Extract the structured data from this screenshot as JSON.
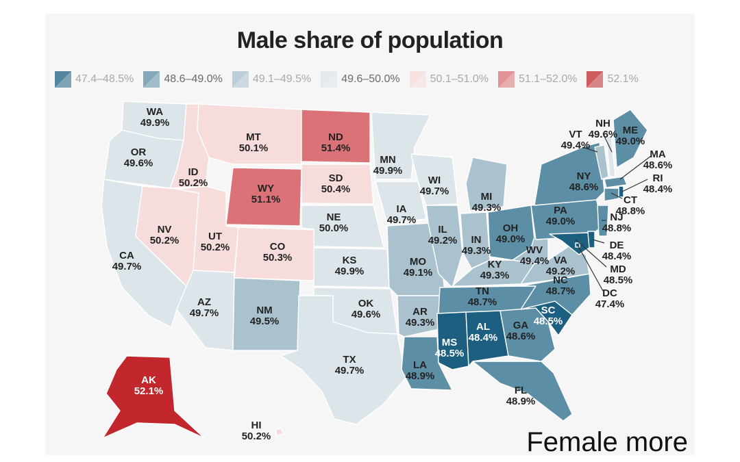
{
  "chart_data": {
    "type": "choropleth",
    "title": "Male share of population",
    "legend": [
      {
        "label": "47.4–48.5%",
        "min": 47.4,
        "max": 48.5,
        "color": "#1d5f80"
      },
      {
        "label": "48.6–49.0%",
        "min": 48.6,
        "max": 49.0,
        "color": "#5c8ea6"
      },
      {
        "label": "49.1–49.5%",
        "min": 49.1,
        "max": 49.5,
        "color": "#a9c2ce"
      },
      {
        "label": "49.6–50.0%",
        "min": 49.6,
        "max": 50.0,
        "color": "#dbe5ea"
      },
      {
        "label": "50.1–51.0%",
        "min": 50.1,
        "max": 51.0,
        "color": "#f7dcdc"
      },
      {
        "label": "51.1–52.0%",
        "min": 51.1,
        "max": 52.0,
        "color": "#da7277"
      },
      {
        "label": "52.1%",
        "min": 52.1,
        "max": 52.1,
        "color": "#c1272d"
      }
    ],
    "legend_placement": "top",
    "states": [
      {
        "code": "WA",
        "value": 49.9,
        "label": "49.9%"
      },
      {
        "code": "OR",
        "value": 49.6,
        "label": "49.6%"
      },
      {
        "code": "CA",
        "value": 49.7,
        "label": "49.7%"
      },
      {
        "code": "ID",
        "value": 50.2,
        "label": "50.2%"
      },
      {
        "code": "NV",
        "value": 50.2,
        "label": "50.2%"
      },
      {
        "code": "MT",
        "value": 50.1,
        "label": "50.1%"
      },
      {
        "code": "WY",
        "value": 51.1,
        "label": "51.1%"
      },
      {
        "code": "UT",
        "value": 50.2,
        "label": "50.2%"
      },
      {
        "code": "CO",
        "value": 50.3,
        "label": "50.3%"
      },
      {
        "code": "AZ",
        "value": 49.7,
        "label": "49.7%"
      },
      {
        "code": "NM",
        "value": 49.5,
        "label": "49.5%"
      },
      {
        "code": "ND",
        "value": 51.4,
        "label": "51.4%"
      },
      {
        "code": "SD",
        "value": 50.4,
        "label": "50.4%"
      },
      {
        "code": "NE",
        "value": 50.0,
        "label": "50.0%"
      },
      {
        "code": "KS",
        "value": 49.9,
        "label": "49.9%"
      },
      {
        "code": "OK",
        "value": 49.6,
        "label": "49.6%"
      },
      {
        "code": "TX",
        "value": 49.7,
        "label": "49.7%"
      },
      {
        "code": "MN",
        "value": 49.9,
        "label": "49.9%"
      },
      {
        "code": "IA",
        "value": 49.7,
        "label": "49.7%"
      },
      {
        "code": "MO",
        "value": 49.1,
        "label": "49.1%"
      },
      {
        "code": "AR",
        "value": 49.3,
        "label": "49.3%"
      },
      {
        "code": "LA",
        "value": 48.9,
        "label": "48.9%"
      },
      {
        "code": "WI",
        "value": 49.7,
        "label": "49.7%"
      },
      {
        "code": "IL",
        "value": 49.2,
        "label": "49.2%"
      },
      {
        "code": "MI",
        "value": 49.3,
        "label": "49.3%"
      },
      {
        "code": "IN",
        "value": 49.3,
        "label": "49.3%"
      },
      {
        "code": "OH",
        "value": 49.0,
        "label": "49.0%"
      },
      {
        "code": "KY",
        "value": 49.3,
        "label": "49.3%"
      },
      {
        "code": "TN",
        "value": 48.7,
        "label": "48.7%"
      },
      {
        "code": "MS",
        "value": 48.5,
        "label": "48.5%"
      },
      {
        "code": "AL",
        "value": 48.4,
        "label": "48.4%"
      },
      {
        "code": "GA",
        "value": 48.6,
        "label": "48.6%"
      },
      {
        "code": "FL",
        "value": 48.9,
        "label": "48.9%"
      },
      {
        "code": "SC",
        "value": 48.5,
        "label": "48.5%"
      },
      {
        "code": "NC",
        "value": 48.7,
        "label": "48.7%"
      },
      {
        "code": "VA",
        "value": 49.2,
        "label": "49.2%"
      },
      {
        "code": "WV",
        "value": 49.4,
        "label": "49.4%"
      },
      {
        "code": "PA",
        "value": 49.0,
        "label": "49.0%"
      },
      {
        "code": "NY",
        "value": 48.6,
        "label": "48.6%"
      },
      {
        "code": "VT",
        "value": 49.4,
        "label": "49.4%"
      },
      {
        "code": "NH",
        "value": 49.6,
        "label": "49.6%"
      },
      {
        "code": "ME",
        "value": 49.0,
        "label": "49.0%"
      },
      {
        "code": "MA",
        "value": 48.6,
        "label": "48.6%"
      },
      {
        "code": "RI",
        "value": 48.4,
        "label": "48.4%"
      },
      {
        "code": "CT",
        "value": 48.8,
        "label": "48.8%"
      },
      {
        "code": "NJ",
        "value": 48.8,
        "label": "48.8%"
      },
      {
        "code": "DE",
        "value": 48.4,
        "label": "48.4%"
      },
      {
        "code": "MD",
        "value": 48.5,
        "label": "48.5%"
      },
      {
        "code": "DC",
        "value": 47.4,
        "label": "47.4%"
      },
      {
        "code": "AK",
        "value": 52.1,
        "label": "52.1%"
      },
      {
        "code": "HI",
        "value": 50.2,
        "label": "50.2%"
      }
    ]
  },
  "caption": "Female more"
}
